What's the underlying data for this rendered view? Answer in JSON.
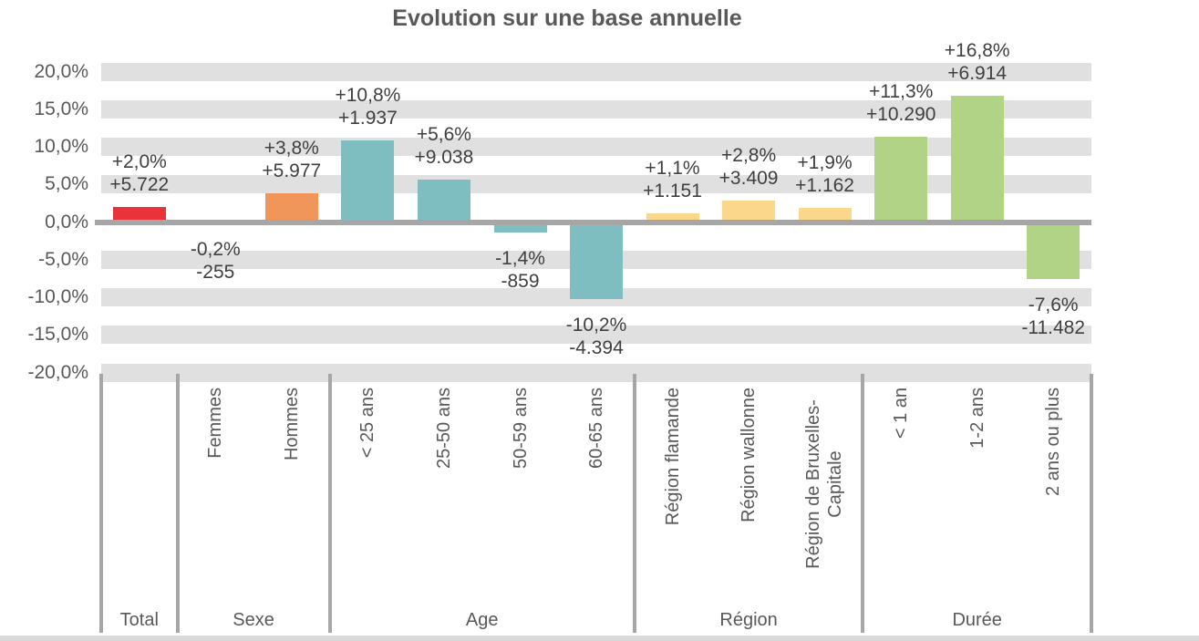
{
  "chart_data": {
    "type": "bar",
    "title": "Evolution sur une base annuelle",
    "xlabel": "",
    "ylabel": "",
    "ylim": [
      -20,
      20
    ],
    "ytick_step_pct": 5,
    "yticks": [
      "20,0%",
      "15,0%",
      "10,0%",
      "5,0%",
      "0,0%",
      "-5,0%",
      "-10,0%",
      "-15,0%",
      "-20,0%"
    ],
    "grid": "horizontal-stripe-bands",
    "legend": null,
    "value_label_format": "percent line above absolute line",
    "groups": [
      {
        "label": "Total",
        "color": "#e8333a",
        "bars": [
          {
            "category": "",
            "pct": 2.0,
            "pct_label": "+2,0%",
            "value": 5722,
            "value_label": "+5.722"
          }
        ]
      },
      {
        "label": "Sexe",
        "color": "#f0965a",
        "bars": [
          {
            "category": "Femmes",
            "pct": -0.2,
            "pct_label": "-0,2%",
            "value": -255,
            "value_label": "-255"
          },
          {
            "category": "Hommes",
            "pct": 3.8,
            "pct_label": "+3,8%",
            "value": 5977,
            "value_label": "+5.977"
          }
        ]
      },
      {
        "label": "Age",
        "color": "#7ebec0",
        "bars": [
          {
            "category": "< 25 ans",
            "pct": 10.8,
            "pct_label": "+10,8%",
            "value": 1937,
            "value_label": "+1.937"
          },
          {
            "category": "25-50 ans",
            "pct": 5.6,
            "pct_label": "+5,6%",
            "value": 9038,
            "value_label": "+9.038"
          },
          {
            "category": "50-59 ans",
            "pct": -1.4,
            "pct_label": "-1,4%",
            "value": -859,
            "value_label": "-859"
          },
          {
            "category": "60-65 ans",
            "pct": -10.2,
            "pct_label": "-10,2%",
            "value": -4394,
            "value_label": "-4.394"
          }
        ]
      },
      {
        "label": "Région",
        "color": "#fbd78b",
        "bars": [
          {
            "category": "Région flamande",
            "pct": 1.1,
            "pct_label": "+1,1%",
            "value": 1151,
            "value_label": "+1.151"
          },
          {
            "category": "Région wallonne",
            "pct": 2.8,
            "pct_label": "+2,8%",
            "value": 3409,
            "value_label": "+3.409"
          },
          {
            "category": "Région de Bruxelles-Capitale",
            "wrap": true,
            "pct": 1.9,
            "pct_label": "+1,9%",
            "value": 1162,
            "value_label": "+1.162"
          }
        ]
      },
      {
        "label": "Durée",
        "color": "#b1d386",
        "bars": [
          {
            "category": "< 1 an",
            "pct": 11.3,
            "pct_label": "+11,3%",
            "value": 10290,
            "value_label": "+10.290"
          },
          {
            "category": "1-2 ans",
            "pct": 16.8,
            "pct_label": "+16,8%",
            "value": 6914,
            "value_label": "+6.914"
          },
          {
            "category": "2 ans ou plus",
            "pct": -7.6,
            "pct_label": "-7,6%",
            "value": -11482,
            "value_label": "-11.482"
          }
        ]
      }
    ],
    "colors": {
      "axis_line": "#a6a6a6",
      "group_separator": "#a6a6a6",
      "grid_stripe": "#e0e0e0",
      "tick_text": "#595959",
      "category_text": "#595959",
      "group_text": "#595959",
      "value_label_text": "#404040",
      "title_text": "#595959"
    }
  }
}
